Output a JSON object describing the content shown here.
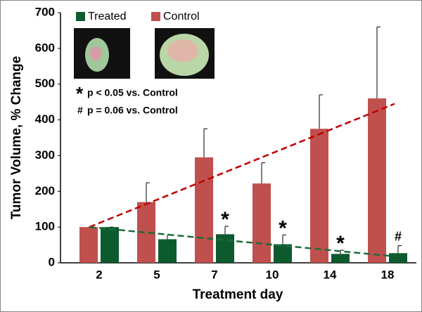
{
  "chart_data": {
    "type": "bar",
    "categories": [
      "2",
      "5",
      "7",
      "10",
      "14",
      "18"
    ],
    "x_label": "Treatment day",
    "y_label": "Tumor Volume, % Change",
    "ylim": [
      0,
      700
    ],
    "yticks": [
      0,
      100,
      200,
      300,
      400,
      500,
      600,
      700
    ],
    "legend": "top-left",
    "series": [
      {
        "name": "Control",
        "color": "#c0504d",
        "trend_color": "#c00000",
        "values": [
          100,
          170,
          295,
          222,
          375,
          460
        ],
        "errors": [
          0,
          54,
          80,
          58,
          95,
          200
        ],
        "trend": [
          100,
          445
        ]
      },
      {
        "name": "Treated",
        "color": "#0e5a2f",
        "trend_color": "#1e6b3a",
        "values": [
          100,
          66,
          80,
          52,
          25,
          27
        ],
        "errors": [
          0,
          12,
          22,
          26,
          10,
          21
        ],
        "trend": [
          100,
          18
        ],
        "significance": [
          null,
          null,
          "*",
          "*",
          "*",
          "#"
        ]
      }
    ],
    "notes": [
      {
        "symbol": "*",
        "text": "p < 0.05 vs. Control"
      },
      {
        "symbol": "#",
        "text": "p = 0.06 vs. Control"
      }
    ]
  }
}
